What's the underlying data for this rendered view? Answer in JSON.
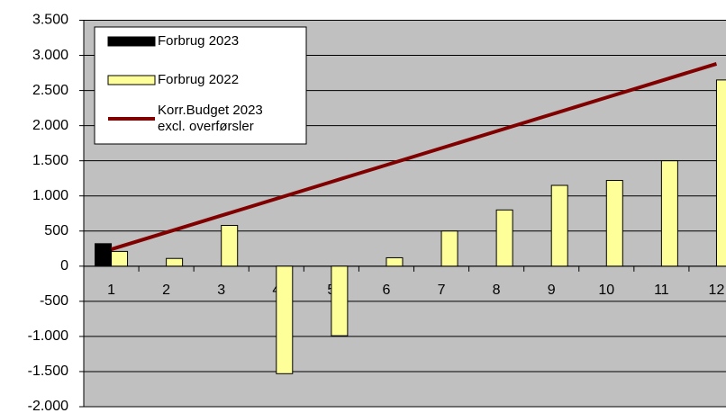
{
  "chart_data": {
    "type": "bar",
    "categories": [
      "1",
      "2",
      "3",
      "4",
      "5",
      "6",
      "7",
      "8",
      "9",
      "10",
      "11",
      "12"
    ],
    "series": [
      {
        "name": "Forbrug 2023",
        "color": "#000000",
        "values": [
          320,
          null,
          null,
          null,
          null,
          null,
          null,
          null,
          null,
          null,
          null,
          null
        ]
      },
      {
        "name": "Forbrug 2022",
        "color": "#ffff99",
        "values": [
          210,
          110,
          580,
          -1530,
          -990,
          120,
          500,
          800,
          1150,
          1220,
          1500,
          2650
        ]
      },
      {
        "name": "Korr.Budget 2023\nexcl. overførsler",
        "type": "line",
        "color": "#800000",
        "values": [
          240,
          480,
          720,
          960,
          1200,
          1440,
          1680,
          1920,
          2160,
          2400,
          2640,
          2880
        ]
      }
    ],
    "ylim": [
      -2000,
      3500
    ],
    "yticks": [
      {
        "value": -2000,
        "label": "-2.000"
      },
      {
        "value": -1500,
        "label": "-1.500"
      },
      {
        "value": -1000,
        "label": "-1.000"
      },
      -500,
      0,
      500,
      {
        "value": 1000,
        "label": "1.000"
      },
      {
        "value": 1500,
        "label": "1.500"
      },
      {
        "value": 2000,
        "label": "2.000"
      },
      {
        "value": 2500,
        "label": "2.500"
      },
      {
        "value": 3000,
        "label": "3.000"
      },
      {
        "value": 3500,
        "label": "3.500"
      }
    ],
    "grid": true,
    "plot_background": "#c0c0c0"
  }
}
